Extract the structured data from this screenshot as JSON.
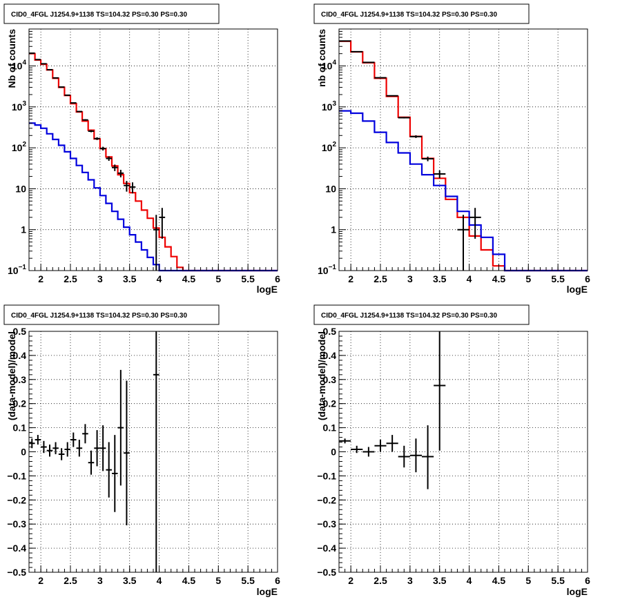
{
  "chart_data": [
    {
      "type": "line",
      "title": "CID0_4FGL J1254.9+1138 TS=104.32 PS=0.30 PS=0.30",
      "xlabel": "logE",
      "ylabel": "Nb of counts",
      "xlim": [
        1.8,
        6
      ],
      "ylim": [
        0.1,
        80000
      ],
      "yscale": "log",
      "grid": true,
      "x_ticks": [
        "2",
        "2.5",
        "3",
        "3.5",
        "4",
        "4.5",
        "5",
        "5.5",
        "6"
      ],
      "y_ticks": [
        "10^-1",
        "1",
        "10",
        "10^2",
        "10^3",
        "10^4"
      ],
      "bin_width": 0.1,
      "series": [
        {
          "color": "#ee0000",
          "drawstyle": "steps",
          "x": [
            1.8,
            1.9,
            2.0,
            2.1,
            2.2,
            2.3,
            2.4,
            2.5,
            2.6,
            2.7,
            2.8,
            2.9,
            3.0,
            3.1,
            3.2,
            3.3,
            3.4,
            3.5,
            3.6,
            3.7,
            3.8,
            3.9,
            4.0,
            4.1,
            4.2,
            4.3,
            4.4,
            4.5,
            4.6,
            4.7,
            4.8,
            4.9,
            5.0,
            5.1,
            5.2,
            5.3,
            5.4,
            5.5,
            5.6,
            5.7,
            5.8,
            5.9
          ],
          "values": [
            20000,
            14000,
            11000,
            8000,
            5000,
            3000,
            1900,
            1200,
            750,
            450,
            270,
            165,
            95,
            60,
            36,
            22,
            13.5,
            8,
            5,
            3,
            1.9,
            1.1,
            0.65,
            0.38,
            0.22,
            0.12,
            0.1,
            0.1,
            0.1,
            0.1,
            0.1,
            0.1,
            0.1,
            0.1,
            0.1,
            0.1,
            0.1,
            0.1,
            0.1,
            0.1,
            0.1,
            0.1
          ]
        },
        {
          "color": "#0000dd",
          "drawstyle": "steps",
          "x": [
            1.8,
            1.9,
            2.0,
            2.1,
            2.2,
            2.3,
            2.4,
            2.5,
            2.6,
            2.7,
            2.8,
            2.9,
            3.0,
            3.1,
            3.2,
            3.3,
            3.4,
            3.5,
            3.6,
            3.7,
            3.8,
            3.9,
            4.0,
            4.1,
            4.2,
            4.3,
            4.4,
            4.5,
            4.6,
            4.7,
            4.8,
            4.9,
            5.0,
            5.1,
            5.2,
            5.3,
            5.4,
            5.5,
            5.6,
            5.7,
            5.8,
            5.9
          ],
          "values": [
            400,
            360,
            300,
            220,
            160,
            115,
            80,
            55,
            37,
            25,
            16.5,
            10.5,
            6.8,
            4.4,
            2.8,
            1.8,
            1.15,
            0.75,
            0.5,
            0.32,
            0.21,
            0.14,
            0.1,
            0.1,
            0.1,
            0.1,
            0.1,
            0.1,
            0.1,
            0.1,
            0.1,
            0.1,
            0.1,
            0.1,
            0.1,
            0.1,
            0.1,
            0.1,
            0.1,
            0.1,
            0.1,
            0.1
          ]
        },
        {
          "color": "#000000",
          "drawstyle": "errorbars",
          "points": [
            {
              "x": 1.85,
              "y": 20500,
              "ylo": 20200,
              "yhi": 20800
            },
            {
              "x": 1.95,
              "y": 14300,
              "ylo": 14100,
              "yhi": 14500
            },
            {
              "x": 2.05,
              "y": 11300,
              "ylo": 11100,
              "yhi": 11500
            },
            {
              "x": 2.15,
              "y": 8100,
              "ylo": 8000,
              "yhi": 8200
            },
            {
              "x": 2.25,
              "y": 5100,
              "ylo": 5000,
              "yhi": 5200
            },
            {
              "x": 2.35,
              "y": 3050,
              "ylo": 2990,
              "yhi": 3110
            },
            {
              "x": 2.45,
              "y": 1930,
              "ylo": 1890,
              "yhi": 1970
            },
            {
              "x": 2.55,
              "y": 1250,
              "ylo": 1220,
              "yhi": 1280
            },
            {
              "x": 2.65,
              "y": 770,
              "ylo": 745,
              "yhi": 795
            },
            {
              "x": 2.75,
              "y": 480,
              "ylo": 460,
              "yhi": 500
            },
            {
              "x": 2.85,
              "y": 255,
              "ylo": 240,
              "yhi": 270
            },
            {
              "x": 2.95,
              "y": 168,
              "ylo": 155,
              "yhi": 181
            },
            {
              "x": 3.05,
              "y": 96,
              "ylo": 86,
              "yhi": 106
            },
            {
              "x": 3.15,
              "y": 55,
              "ylo": 48,
              "yhi": 62
            },
            {
              "x": 3.25,
              "y": 33,
              "ylo": 27,
              "yhi": 39
            },
            {
              "x": 3.35,
              "y": 24,
              "ylo": 19,
              "yhi": 29
            },
            {
              "x": 3.45,
              "y": 12,
              "ylo": 8.5,
              "yhi": 15.5
            },
            {
              "x": 3.55,
              "y": 11,
              "ylo": 7.7,
              "yhi": 14.3
            },
            {
              "x": 3.95,
              "y": 1,
              "ylo": 0.1,
              "yhi": 2.3
            },
            {
              "x": 4.05,
              "y": 2,
              "ylo": 0.6,
              "yhi": 3.4
            }
          ]
        }
      ]
    },
    {
      "type": "line",
      "title": "CID0_4FGL J1254.9+1138 TS=104.32 PS=0.30 PS=0.30",
      "xlabel": "logE",
      "ylabel": "nb of counts",
      "xlim": [
        1.8,
        6
      ],
      "ylim": [
        0.1,
        80000
      ],
      "yscale": "log",
      "grid": true,
      "x_ticks": [
        "2",
        "2.5",
        "3",
        "3.5",
        "4",
        "4.5",
        "5",
        "5.5",
        "6"
      ],
      "y_ticks": [
        "10^-1",
        "1",
        "10",
        "10^2",
        "10^3",
        "10^4"
      ],
      "bin_width": 0.2,
      "series": [
        {
          "color": "#ee0000",
          "drawstyle": "steps",
          "x": [
            1.8,
            2.0,
            2.2,
            2.4,
            2.6,
            2.8,
            3.0,
            3.2,
            3.4,
            3.6,
            3.8,
            4.0,
            4.2,
            4.4,
            4.6,
            4.8,
            5.0,
            5.2,
            5.4,
            5.6,
            5.8
          ],
          "values": [
            40000,
            22000,
            12000,
            5000,
            1800,
            560,
            190,
            55,
            18,
            5.5,
            2,
            0.7,
            0.32,
            0.13,
            0.1,
            0.1,
            0.1,
            0.1,
            0.1,
            0.1,
            0.1
          ]
        },
        {
          "color": "#0000dd",
          "drawstyle": "steps",
          "x": [
            1.8,
            2.0,
            2.2,
            2.4,
            2.6,
            2.8,
            3.0,
            3.2,
            3.4,
            3.6,
            3.8,
            4.0,
            4.2,
            4.4,
            4.6,
            4.8,
            5.0,
            5.2,
            5.4,
            5.6,
            5.8
          ],
          "values": [
            800,
            700,
            450,
            240,
            135,
            75,
            40,
            22,
            12,
            6.5,
            2.8,
            1.3,
            0.65,
            0.25,
            0.1,
            0.1,
            0.1,
            0.1,
            0.1,
            0.1,
            0.1
          ]
        },
        {
          "color": "#000000",
          "drawstyle": "errorbars",
          "points": [
            {
              "x": 1.9,
              "y": 40800,
              "ylo": 40600,
              "yhi": 41000
            },
            {
              "x": 2.1,
              "y": 22300,
              "ylo": 22150,
              "yhi": 22450
            },
            {
              "x": 2.3,
              "y": 12200,
              "ylo": 12090,
              "yhi": 12310
            },
            {
              "x": 2.5,
              "y": 5150,
              "ylo": 5080,
              "yhi": 5220
            },
            {
              "x": 2.7,
              "y": 1870,
              "ylo": 1830,
              "yhi": 1910
            },
            {
              "x": 2.9,
              "y": 545,
              "ylo": 522,
              "yhi": 568
            },
            {
              "x": 3.1,
              "y": 188,
              "ylo": 174,
              "yhi": 202
            },
            {
              "x": 3.3,
              "y": 54,
              "ylo": 47,
              "yhi": 61
            },
            {
              "x": 3.5,
              "y": 23,
              "ylo": 18,
              "yhi": 28
            },
            {
              "x": 3.9,
              "y": 1,
              "ylo": 0.1,
              "yhi": 2.3
            },
            {
              "x": 4.1,
              "y": 2,
              "ylo": 0.6,
              "yhi": 3.4
            }
          ]
        }
      ]
    },
    {
      "type": "scatter",
      "title": "CID0_4FGL J1254.9+1138 TS=104.32 PS=0.30 PS=0.30",
      "xlabel": "logE",
      "ylabel": "(data-model)/model",
      "xlim": [
        1.8,
        6
      ],
      "ylim": [
        -0.5,
        0.5
      ],
      "grid": true,
      "x_ticks": [
        "2",
        "2.5",
        "3",
        "3.5",
        "4",
        "4.5",
        "5",
        "5.5",
        "6"
      ],
      "y_ticks": [
        "−0.5",
        "−0.4",
        "−0.3",
        "−0.2",
        "−0.1",
        "0",
        "0.1",
        "0.2",
        "0.3",
        "0.4",
        "0.5"
      ],
      "bin_width": 0.1,
      "series": [
        {
          "color": "#000000",
          "drawstyle": "errorbars",
          "points": [
            {
              "x": 1.85,
              "y": 0.035,
              "ylo": 0.015,
              "yhi": 0.055
            },
            {
              "x": 1.95,
              "y": 0.05,
              "ylo": 0.03,
              "yhi": 0.07
            },
            {
              "x": 2.05,
              "y": 0.02,
              "ylo": -0.005,
              "yhi": 0.045
            },
            {
              "x": 2.15,
              "y": 0.005,
              "ylo": -0.02,
              "yhi": 0.03
            },
            {
              "x": 2.25,
              "y": 0.015,
              "ylo": -0.01,
              "yhi": 0.04
            },
            {
              "x": 2.35,
              "y": -0.01,
              "ylo": -0.035,
              "yhi": 0.015
            },
            {
              "x": 2.45,
              "y": 0.01,
              "ylo": -0.02,
              "yhi": 0.04
            },
            {
              "x": 2.55,
              "y": 0.05,
              "ylo": 0.02,
              "yhi": 0.08
            },
            {
              "x": 2.65,
              "y": 0.015,
              "ylo": -0.02,
              "yhi": 0.05
            },
            {
              "x": 2.75,
              "y": 0.075,
              "ylo": 0.035,
              "yhi": 0.115
            },
            {
              "x": 2.85,
              "y": -0.045,
              "ylo": -0.095,
              "yhi": 0.005
            },
            {
              "x": 2.95,
              "y": 0.015,
              "ylo": -0.06,
              "yhi": 0.09
            },
            {
              "x": 3.05,
              "y": 0.015,
              "ylo": -0.08,
              "yhi": 0.11
            },
            {
              "x": 3.15,
              "y": -0.075,
              "ylo": -0.19,
              "yhi": 0.04
            },
            {
              "x": 3.25,
              "y": -0.09,
              "ylo": -0.25,
              "yhi": 0.07
            },
            {
              "x": 3.35,
              "y": 0.1,
              "ylo": -0.14,
              "yhi": 0.34
            },
            {
              "x": 3.45,
              "y": -0.005,
              "ylo": -0.305,
              "yhi": 0.295
            },
            {
              "x": 3.95,
              "y": 0.32,
              "ylo": -0.5,
              "yhi": 0.5
            }
          ]
        }
      ]
    },
    {
      "type": "scatter",
      "title": "CID0_4FGL J1254.9+1138 TS=104.32 PS=0.30 PS=0.30",
      "xlabel": "logE",
      "ylabel": "(data-model)/model",
      "xlim": [
        1.8,
        6
      ],
      "ylim": [
        -0.5,
        0.5
      ],
      "grid": true,
      "x_ticks": [
        "2",
        "2.5",
        "3",
        "3.5",
        "4",
        "4.5",
        "5",
        "5.5",
        "6"
      ],
      "y_ticks": [
        "−0.5",
        "−0.4",
        "−0.3",
        "−0.2",
        "−0.1",
        "0",
        "0.1",
        "0.2",
        "0.3",
        "0.4",
        "0.5"
      ],
      "bin_width": 0.2,
      "series": [
        {
          "color": "#000000",
          "drawstyle": "errorbars",
          "points": [
            {
              "x": 1.9,
              "y": 0.045,
              "ylo": 0.035,
              "yhi": 0.055
            },
            {
              "x": 2.1,
              "y": 0.01,
              "ylo": -0.005,
              "yhi": 0.025
            },
            {
              "x": 2.3,
              "y": 0.0,
              "ylo": -0.02,
              "yhi": 0.02
            },
            {
              "x": 2.5,
              "y": 0.025,
              "ylo": 0.0,
              "yhi": 0.05
            },
            {
              "x": 2.7,
              "y": 0.035,
              "ylo": 0.0,
              "yhi": 0.07
            },
            {
              "x": 2.9,
              "y": -0.02,
              "ylo": -0.065,
              "yhi": 0.025
            },
            {
              "x": 3.1,
              "y": -0.015,
              "ylo": -0.085,
              "yhi": 0.055
            },
            {
              "x": 3.3,
              "y": -0.02,
              "ylo": -0.155,
              "yhi": 0.11
            },
            {
              "x": 3.5,
              "y": 0.275,
              "ylo": 0.005,
              "yhi": 0.5
            }
          ]
        }
      ]
    }
  ]
}
